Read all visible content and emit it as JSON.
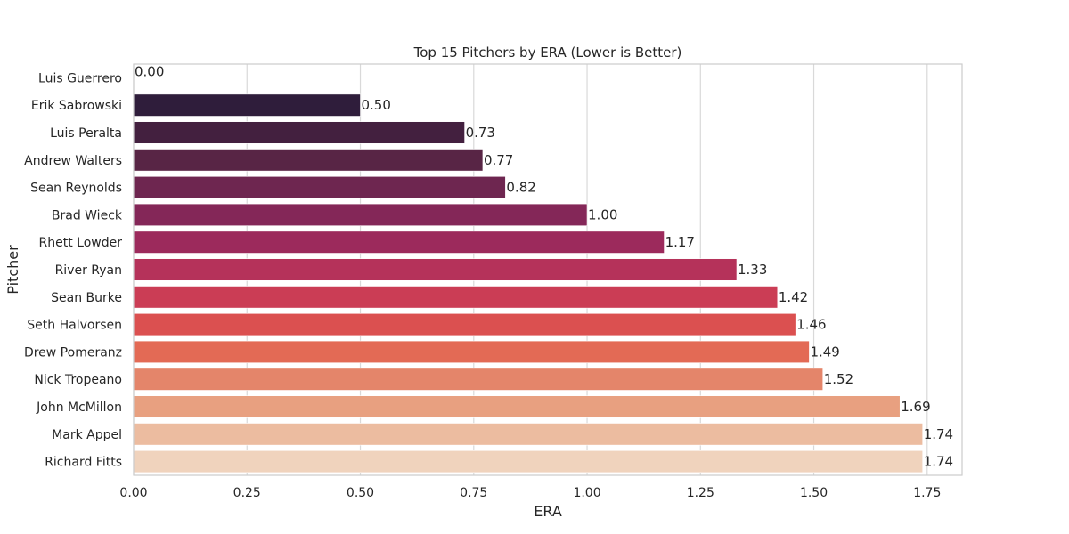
{
  "chart_data": {
    "type": "bar",
    "orientation": "horizontal",
    "title": "Top 15 Pitchers by ERA (Lower is Better)",
    "xlabel": "ERA",
    "ylabel": "Pitcher",
    "xlim": [
      0,
      1.827
    ],
    "xticks": [
      0,
      0.25,
      0.5,
      0.75,
      1.0,
      1.25,
      1.5,
      1.75
    ],
    "xtick_labels": [
      "0.00",
      "0.25",
      "0.50",
      "0.75",
      "1.00",
      "1.25",
      "1.50",
      "1.75"
    ],
    "grid": "vertical",
    "categories": [
      "Luis Guerrero",
      "Erik Sabrowski",
      "Luis Peralta",
      "Andrew Walters",
      "Sean Reynolds",
      "Brad Wieck",
      "Rhett Lowder",
      "River Ryan",
      "Sean Burke",
      "Seth Halvorsen",
      "Drew Pomeranz",
      "Nick Tropeano",
      "John McMillon",
      "Mark Appel",
      "Richard Fitts"
    ],
    "values": [
      0.0,
      0.5,
      0.73,
      0.77,
      0.82,
      1.0,
      1.17,
      1.33,
      1.42,
      1.46,
      1.49,
      1.52,
      1.69,
      1.74,
      1.74
    ],
    "value_labels": [
      "0.00",
      "0.50",
      "0.73",
      "0.77",
      "0.82",
      "1.00",
      "1.17",
      "1.33",
      "1.42",
      "1.46",
      "1.49",
      "1.52",
      "1.69",
      "1.74",
      "1.74"
    ],
    "colors": [
      "#1f1330",
      "#2f1d3b",
      "#43203f",
      "#582545",
      "#6e2650",
      "#842758",
      "#9c2a5c",
      "#b5325a",
      "#cb3d55",
      "#db5050",
      "#e36a55",
      "#e4856a",
      "#e8a080",
      "#ecbca0",
      "#f0d3bd"
    ]
  }
}
